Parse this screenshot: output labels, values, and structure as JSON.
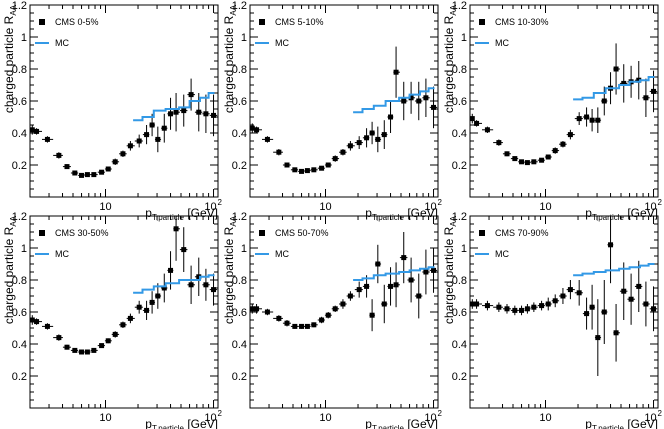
{
  "figure": {
    "xlabel": "p",
    "xlabel_subscript": "T,particle",
    "xlabel_unit": " [GeV]",
    "ylabel": "charged particle R",
    "ylabel_subscript": "AA",
    "x_tick_labels": [
      "10",
      "10"
    ],
    "x_tick_exponent": "2",
    "mc_color": "#3399e6",
    "data_color": "#000000"
  },
  "chart_data": [
    {
      "type": "scatter",
      "title": "CMS 0-5%",
      "xscale": "log",
      "xlim": [
        2.0,
        110
      ],
      "ylim": [
        0,
        1.2
      ],
      "y_tick_labels": [
        "0.2",
        "0.4",
        "0.6",
        "0.8",
        "1",
        "1.2"
      ],
      "legend": [
        {
          "label": "CMS 0-5%",
          "marker": "square"
        },
        {
          "label": "MC",
          "marker": "line"
        }
      ],
      "series": [
        {
          "name": "CMS 0-5%",
          "kind": "points",
          "x": [
            2.1,
            2.3,
            2.9,
            3.7,
            4.4,
            5.2,
            6.0,
            6.8,
            7.8,
            9.2,
            10.6,
            12.3,
            14.5,
            17.0,
            20.5,
            24.0,
            27.0,
            30.5,
            35.0,
            40.0,
            45.0,
            53.0,
            62.0,
            73.0,
            85.0,
            100.0
          ],
          "y": [
            0.42,
            0.41,
            0.36,
            0.26,
            0.19,
            0.15,
            0.135,
            0.14,
            0.14,
            0.155,
            0.175,
            0.22,
            0.27,
            0.32,
            0.35,
            0.39,
            0.45,
            0.36,
            0.43,
            0.52,
            0.53,
            0.54,
            0.64,
            0.53,
            0.52,
            0.51
          ],
          "yerr": [
            0.03,
            0.02,
            0.02,
            0.02,
            0.015,
            0.01,
            0.01,
            0.01,
            0.01,
            0.01,
            0.015,
            0.02,
            0.02,
            0.03,
            0.04,
            0.06,
            0.07,
            0.08,
            0.09,
            0.1,
            0.12,
            0.1,
            0.1,
            0.12,
            0.12,
            0.13
          ]
        },
        {
          "name": "MC",
          "kind": "step",
          "edges": [
            18,
            22,
            28,
            36,
            48,
            60,
            75,
            90,
            102
          ],
          "values": [
            0.48,
            0.5,
            0.54,
            0.55,
            0.56,
            0.6,
            0.62,
            0.65
          ]
        }
      ]
    },
    {
      "type": "scatter",
      "title": "CMS 5-10%",
      "xscale": "log",
      "xlim": [
        2.0,
        110
      ],
      "ylim": [
        0,
        1.2
      ],
      "y_tick_labels": [
        "0.2",
        "0.4",
        "0.6",
        "0.8",
        "1",
        "1.2"
      ],
      "legend": [
        {
          "label": "CMS 5-10%",
          "marker": "square"
        },
        {
          "label": "MC",
          "marker": "line"
        }
      ],
      "series": [
        {
          "name": "CMS 5-10%",
          "kind": "points",
          "x": [
            2.1,
            2.3,
            2.9,
            3.7,
            4.4,
            5.2,
            6.0,
            6.8,
            7.8,
            9.2,
            10.6,
            12.3,
            14.5,
            17.0,
            20.5,
            24.0,
            27.0,
            30.5,
            35.0,
            40.0,
            45.0,
            53.0,
            62.0,
            73.0,
            85.0,
            100.0
          ],
          "y": [
            0.43,
            0.42,
            0.36,
            0.28,
            0.2,
            0.17,
            0.16,
            0.165,
            0.17,
            0.18,
            0.2,
            0.24,
            0.28,
            0.32,
            0.34,
            0.37,
            0.4,
            0.36,
            0.39,
            0.5,
            0.78,
            0.6,
            0.62,
            0.6,
            0.62,
            0.56
          ],
          "yerr": [
            0.03,
            0.02,
            0.02,
            0.02,
            0.015,
            0.01,
            0.01,
            0.01,
            0.01,
            0.01,
            0.015,
            0.02,
            0.02,
            0.03,
            0.04,
            0.06,
            0.07,
            0.08,
            0.09,
            0.1,
            0.16,
            0.12,
            0.1,
            0.12,
            0.12,
            0.13
          ]
        },
        {
          "name": "MC",
          "kind": "step",
          "edges": [
            18,
            22,
            28,
            36,
            48,
            60,
            75,
            90,
            102
          ],
          "values": [
            0.53,
            0.55,
            0.57,
            0.6,
            0.62,
            0.64,
            0.66,
            0.68
          ]
        }
      ]
    },
    {
      "type": "scatter",
      "title": "CMS 10-30%",
      "xscale": "log",
      "xlim": [
        2.0,
        110
      ],
      "ylim": [
        0,
        1.2
      ],
      "y_tick_labels": [
        "0.2",
        "0.4",
        "0.6",
        "0.8",
        "1",
        "1.2"
      ],
      "legend": [
        {
          "label": "CMS 10-30%",
          "marker": "square"
        },
        {
          "label": "MC",
          "marker": "line"
        }
      ],
      "series": [
        {
          "name": "CMS 10-30%",
          "kind": "points",
          "x": [
            2.1,
            2.3,
            2.9,
            3.7,
            4.4,
            5.2,
            6.0,
            6.8,
            7.8,
            9.2,
            10.6,
            12.3,
            14.5,
            17.0,
            20.5,
            24.0,
            27.0,
            30.5,
            35.0,
            40.0,
            45.0,
            53.0,
            62.0,
            73.0,
            85.0,
            100.0
          ],
          "y": [
            0.49,
            0.46,
            0.42,
            0.34,
            0.27,
            0.24,
            0.22,
            0.215,
            0.22,
            0.23,
            0.25,
            0.29,
            0.33,
            0.39,
            0.49,
            0.5,
            0.48,
            0.48,
            0.6,
            0.68,
            0.8,
            0.71,
            0.72,
            0.73,
            0.62,
            0.66
          ],
          "yerr": [
            0.03,
            0.02,
            0.02,
            0.02,
            0.015,
            0.01,
            0.01,
            0.01,
            0.01,
            0.01,
            0.015,
            0.02,
            0.02,
            0.03,
            0.04,
            0.06,
            0.07,
            0.08,
            0.09,
            0.1,
            0.16,
            0.12,
            0.1,
            0.12,
            0.12,
            0.13
          ]
        },
        {
          "name": "MC",
          "kind": "step",
          "edges": [
            18,
            22,
            28,
            36,
            48,
            60,
            75,
            90,
            102
          ],
          "values": [
            0.61,
            0.62,
            0.65,
            0.68,
            0.7,
            0.72,
            0.73,
            0.75
          ]
        }
      ]
    },
    {
      "type": "scatter",
      "title": "CMS 30-50%",
      "xscale": "log",
      "xlim": [
        2.0,
        110
      ],
      "ylim": [
        0,
        1.2
      ],
      "y_tick_labels": [
        "0.2",
        "0.4",
        "0.6",
        "0.8",
        "1",
        "1.2"
      ],
      "legend": [
        {
          "label": "CMS 30-50%",
          "marker": "square"
        },
        {
          "label": "MC",
          "marker": "line"
        }
      ],
      "series": [
        {
          "name": "CMS 30-50%",
          "kind": "points",
          "x": [
            2.1,
            2.3,
            2.9,
            3.7,
            4.4,
            5.2,
            6.0,
            6.8,
            7.8,
            9.2,
            10.6,
            12.3,
            14.5,
            17.0,
            20.5,
            24.0,
            27.0,
            30.5,
            35.0,
            40.0,
            45.0,
            53.0,
            62.0,
            73.0,
            85.0,
            100.0
          ],
          "y": [
            0.55,
            0.54,
            0.51,
            0.44,
            0.38,
            0.36,
            0.35,
            0.35,
            0.36,
            0.39,
            0.42,
            0.46,
            0.52,
            0.56,
            0.63,
            0.61,
            0.66,
            0.7,
            0.75,
            0.86,
            1.12,
            0.99,
            0.77,
            0.82,
            0.77,
            0.74
          ],
          "yerr": [
            0.03,
            0.02,
            0.02,
            0.02,
            0.015,
            0.01,
            0.01,
            0.01,
            0.01,
            0.01,
            0.015,
            0.02,
            0.02,
            0.03,
            0.04,
            0.06,
            0.07,
            0.08,
            0.09,
            0.12,
            0.2,
            0.14,
            0.12,
            0.12,
            0.1,
            0.1
          ]
        },
        {
          "name": "MC",
          "kind": "step",
          "edges": [
            18,
            22,
            28,
            36,
            48,
            60,
            75,
            90,
            102
          ],
          "values": [
            0.72,
            0.74,
            0.76,
            0.78,
            0.8,
            0.8,
            0.82,
            0.83
          ]
        }
      ]
    },
    {
      "type": "scatter",
      "title": "CMS 50-70%",
      "xscale": "log",
      "xlim": [
        2.0,
        110
      ],
      "ylim": [
        0,
        1.2
      ],
      "y_tick_labels": [
        "0.2",
        "0.4",
        "0.6",
        "0.8",
        "1",
        "1.2"
      ],
      "legend": [
        {
          "label": "CMS 50-70%",
          "marker": "square"
        },
        {
          "label": "MC",
          "marker": "line"
        }
      ],
      "series": [
        {
          "name": "CMS 50-70%",
          "kind": "points",
          "x": [
            2.1,
            2.3,
            2.9,
            3.7,
            4.4,
            5.2,
            6.0,
            6.8,
            7.8,
            9.2,
            10.6,
            12.3,
            14.5,
            17.0,
            20.5,
            24.0,
            27.0,
            30.5,
            35.0,
            40.0,
            45.0,
            53.0,
            62.0,
            73.0,
            85.0,
            100.0
          ],
          "y": [
            0.62,
            0.62,
            0.6,
            0.56,
            0.53,
            0.51,
            0.51,
            0.51,
            0.52,
            0.55,
            0.58,
            0.62,
            0.65,
            0.7,
            0.74,
            0.76,
            0.58,
            0.9,
            0.65,
            0.76,
            0.77,
            0.94,
            0.8,
            0.7,
            0.85,
            0.86
          ],
          "yerr": [
            0.03,
            0.03,
            0.02,
            0.02,
            0.02,
            0.015,
            0.015,
            0.015,
            0.015,
            0.02,
            0.02,
            0.02,
            0.03,
            0.03,
            0.05,
            0.07,
            0.1,
            0.12,
            0.12,
            0.12,
            0.14,
            0.16,
            0.14,
            0.14,
            0.14,
            0.14
          ]
        },
        {
          "name": "MC",
          "kind": "step",
          "edges": [
            18,
            22,
            28,
            36,
            48,
            60,
            75,
            90,
            102
          ],
          "values": [
            0.8,
            0.81,
            0.83,
            0.84,
            0.85,
            0.86,
            0.87,
            0.88
          ]
        }
      ]
    },
    {
      "type": "scatter",
      "title": "CMS 70-90%",
      "xscale": "log",
      "xlim": [
        2.0,
        110
      ],
      "ylim": [
        0,
        1.2
      ],
      "y_tick_labels": [
        "0.2",
        "0.4",
        "0.6",
        "0.8",
        "1",
        "1.2"
      ],
      "legend": [
        {
          "label": "CMS 70-90%",
          "marker": "square"
        },
        {
          "label": "MC",
          "marker": "line"
        }
      ],
      "series": [
        {
          "name": "CMS 70-90%",
          "kind": "points",
          "x": [
            2.1,
            2.3,
            2.9,
            3.7,
            4.4,
            5.2,
            6.0,
            6.8,
            7.8,
            9.2,
            10.6,
            12.3,
            14.5,
            17.0,
            20.5,
            24.0,
            27.0,
            30.5,
            35.0,
            40.0,
            45.0,
            53.0,
            62.0,
            73.0,
            85.0,
            100.0
          ],
          "y": [
            0.65,
            0.65,
            0.64,
            0.63,
            0.62,
            0.61,
            0.61,
            0.62,
            0.63,
            0.64,
            0.65,
            0.67,
            0.7,
            0.74,
            0.72,
            0.59,
            0.63,
            0.44,
            0.6,
            1.02,
            0.47,
            0.73,
            0.68,
            0.76,
            0.65,
            0.62
          ],
          "yerr": [
            0.03,
            0.03,
            0.03,
            0.03,
            0.03,
            0.03,
            0.03,
            0.03,
            0.03,
            0.03,
            0.04,
            0.04,
            0.05,
            0.06,
            0.08,
            0.1,
            0.14,
            0.24,
            0.2,
            0.24,
            0.18,
            0.18,
            0.16,
            0.16,
            0.14,
            0.14
          ]
        },
        {
          "name": "MC",
          "kind": "step",
          "edges": [
            18,
            22,
            28,
            36,
            48,
            60,
            75,
            90,
            102
          ],
          "values": [
            0.83,
            0.84,
            0.85,
            0.86,
            0.87,
            0.88,
            0.89,
            0.9
          ]
        }
      ]
    }
  ]
}
